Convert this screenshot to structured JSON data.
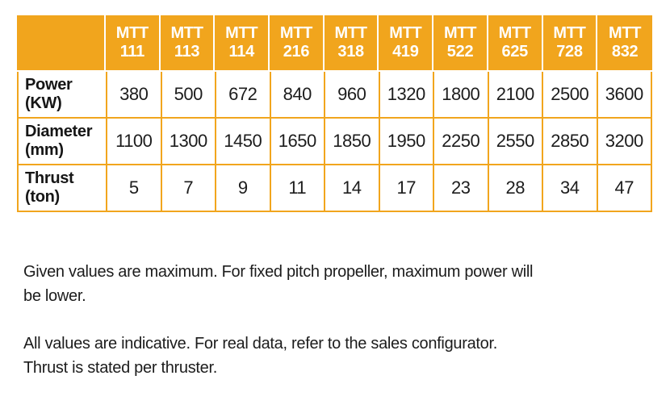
{
  "colors": {
    "accent_orange": "#F1A51D",
    "header_text": "#ffffff",
    "body_text": "#1d1d1d"
  },
  "spec_table": {
    "corner_label": "",
    "columns": [
      {
        "series": "MTT",
        "model": "111"
      },
      {
        "series": "MTT",
        "model": "113"
      },
      {
        "series": "MTT",
        "model": "114"
      },
      {
        "series": "MTT",
        "model": "216"
      },
      {
        "series": "MTT",
        "model": "318"
      },
      {
        "series": "MTT",
        "model": "419"
      },
      {
        "series": "MTT",
        "model": "522"
      },
      {
        "series": "MTT",
        "model": "625"
      },
      {
        "series": "MTT",
        "model": "728"
      },
      {
        "series": "MTT",
        "model": "832"
      }
    ],
    "rows": [
      {
        "label": "Power",
        "unit": "(KW)",
        "values": [
          "380",
          "500",
          "672",
          "840",
          "960",
          "1320",
          "1800",
          "2100",
          "2500",
          "3600"
        ]
      },
      {
        "label": "Diameter",
        "unit": "(mm)",
        "values": [
          "1100",
          "1300",
          "1450",
          "1650",
          "1850",
          "1950",
          "2250",
          "2550",
          "2850",
          "3200"
        ]
      },
      {
        "label": "Thrust",
        "unit": "(ton)",
        "values": [
          "5",
          "7",
          "9",
          "11",
          "14",
          "17",
          "23",
          "28",
          "34",
          "47"
        ]
      }
    ]
  },
  "notes": [
    {
      "lines": [
        "Given values are maximum. For fixed pitch propeller, maximum power will",
        "be lower."
      ]
    },
    {
      "lines": [
        "All values are indicative. For real data, refer to the sales configurator.",
        "Thrust is stated per thruster."
      ]
    }
  ]
}
